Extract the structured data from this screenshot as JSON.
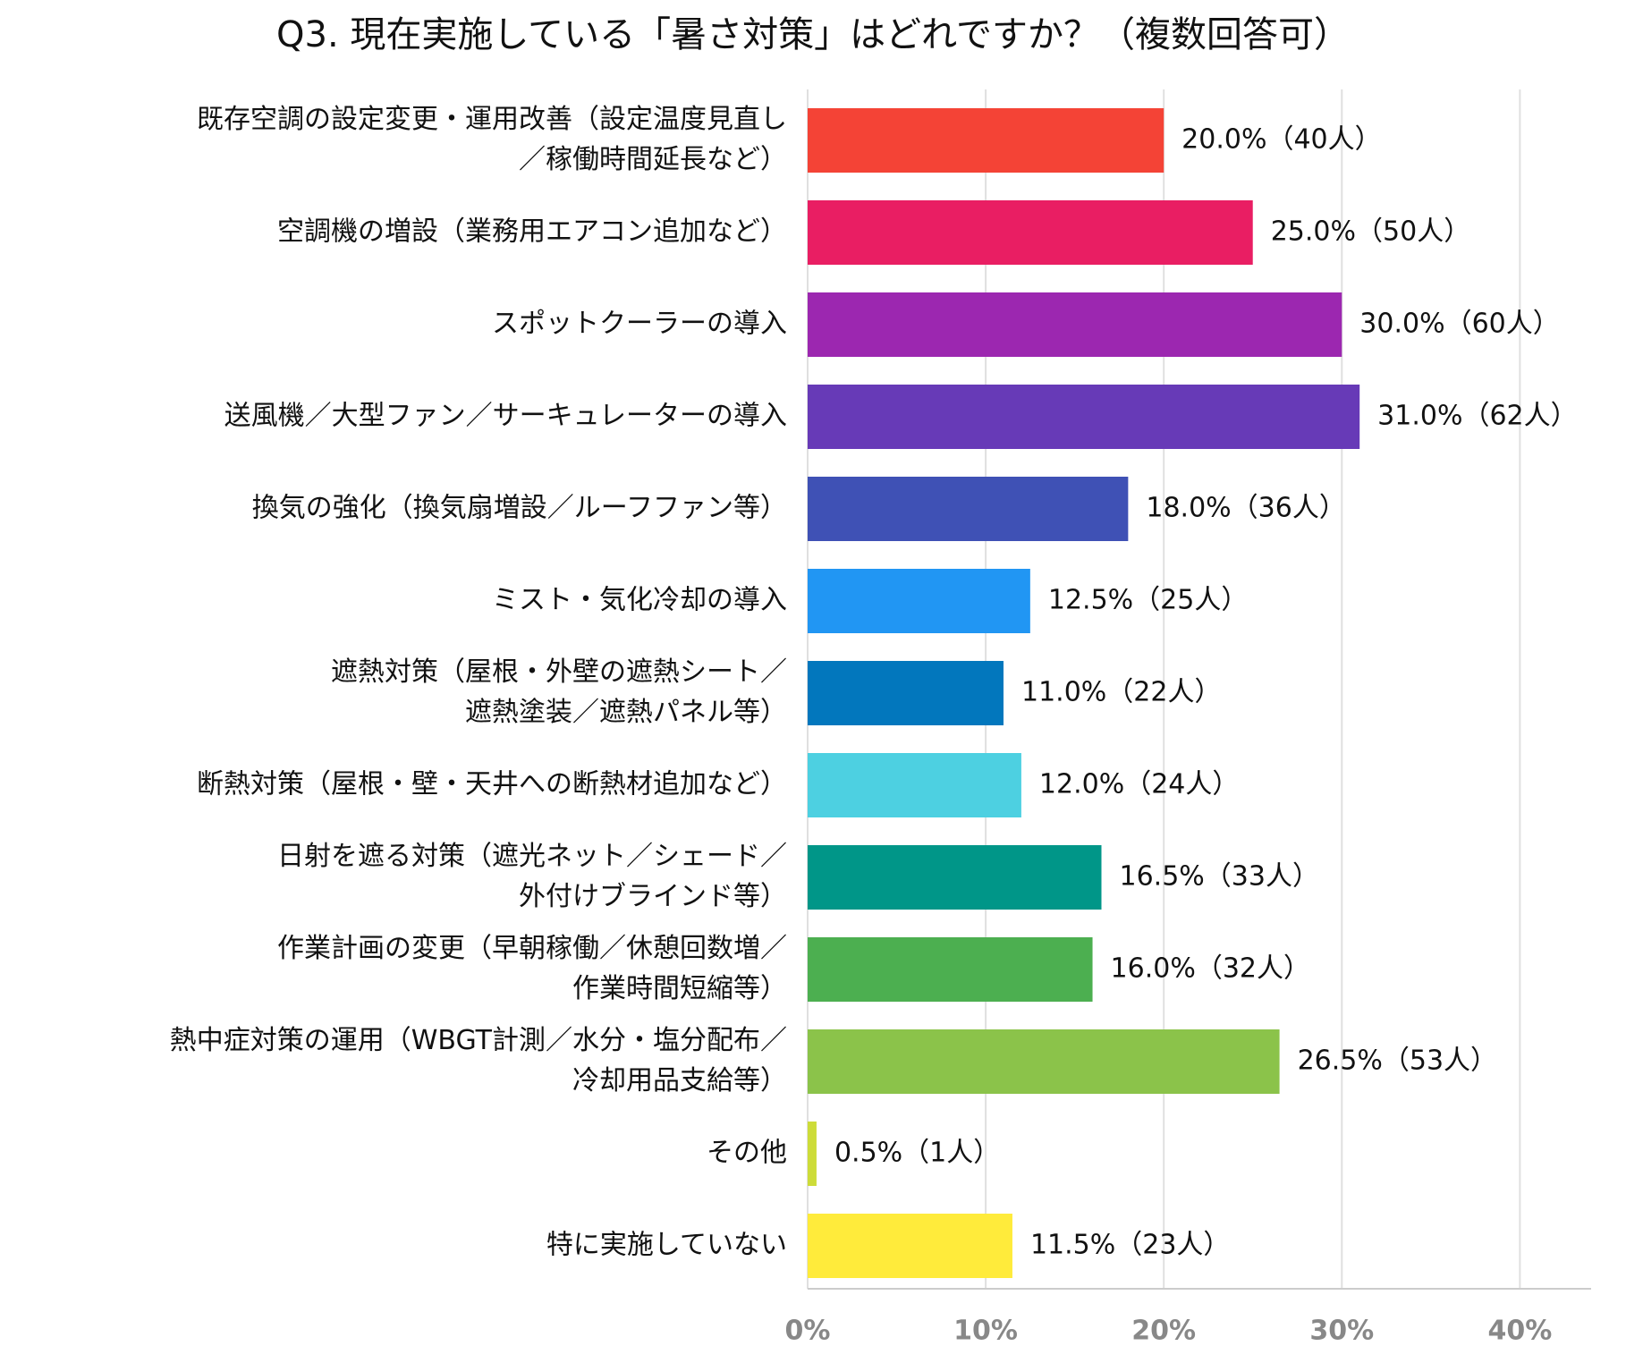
{
  "chart_data": {
    "type": "barh",
    "title": "Q3. 現在実施している「暑さ対策」はどれですか？（複数回答可）",
    "categories": [
      [
        "既存空調の設定変更・運用改善（設定温度見直し",
        "／稼働時間延長など）"
      ],
      [
        "空調機の増設（業務用エアコン追加など）"
      ],
      [
        "スポットクーラーの導入"
      ],
      [
        "送風機／大型ファン／サーキュレーターの導入"
      ],
      [
        "換気の強化（換気扇増設／ルーフファン等）"
      ],
      [
        "ミスト・気化冷却の導入"
      ],
      [
        "遮熱対策（屋根・外壁の遮熱シート／",
        "遮熱塗装／遮熱パネル等）"
      ],
      [
        "断熱対策（屋根・壁・天井への断熱材追加など）"
      ],
      [
        "日射を遮る対策（遮光ネット／シェード／",
        "外付けブラインド等）"
      ],
      [
        "作業計画の変更（早朝稼働／休憩回数増／",
        "作業時間短縮等）"
      ],
      [
        "熱中症対策の運用（WBGT計測／水分・塩分配布／",
        "冷却用品支給等）"
      ],
      [
        "その他"
      ],
      [
        "特に実施していない"
      ]
    ],
    "values": [
      20.0,
      25.0,
      30.0,
      31.0,
      18.0,
      12.5,
      11.0,
      12.0,
      16.5,
      16.0,
      26.5,
      0.5,
      11.5
    ],
    "value_labels": [
      "20.0%（40人）",
      "25.0%（50人）",
      "30.0%（60人）",
      "31.0%（62人）",
      "18.0%（36人）",
      "12.5%（25人）",
      "11.0%（22人）",
      "12.0%（24人）",
      "16.5%（33人）",
      "16.0%（32人）",
      "26.5%（53人）",
      "0.5%（1人）",
      "11.5%（23人）"
    ],
    "colors": [
      "#f44336",
      "#e91e63",
      "#9c27b0",
      "#673ab7",
      "#3f51b5",
      "#2196f3",
      "#0277bd",
      "#4dd0e1",
      "#009688",
      "#4caf50",
      "#8bc34a",
      "#cddc39",
      "#ffeb3b"
    ],
    "xlim": [
      0,
      44
    ],
    "xticks": [
      {
        "value": 0,
        "label": "0%"
      },
      {
        "value": 10,
        "label": "10%"
      },
      {
        "value": 20,
        "label": "20%"
      },
      {
        "value": 30,
        "label": "30%"
      },
      {
        "value": 40,
        "label": "40%"
      }
    ],
    "grid": true
  }
}
